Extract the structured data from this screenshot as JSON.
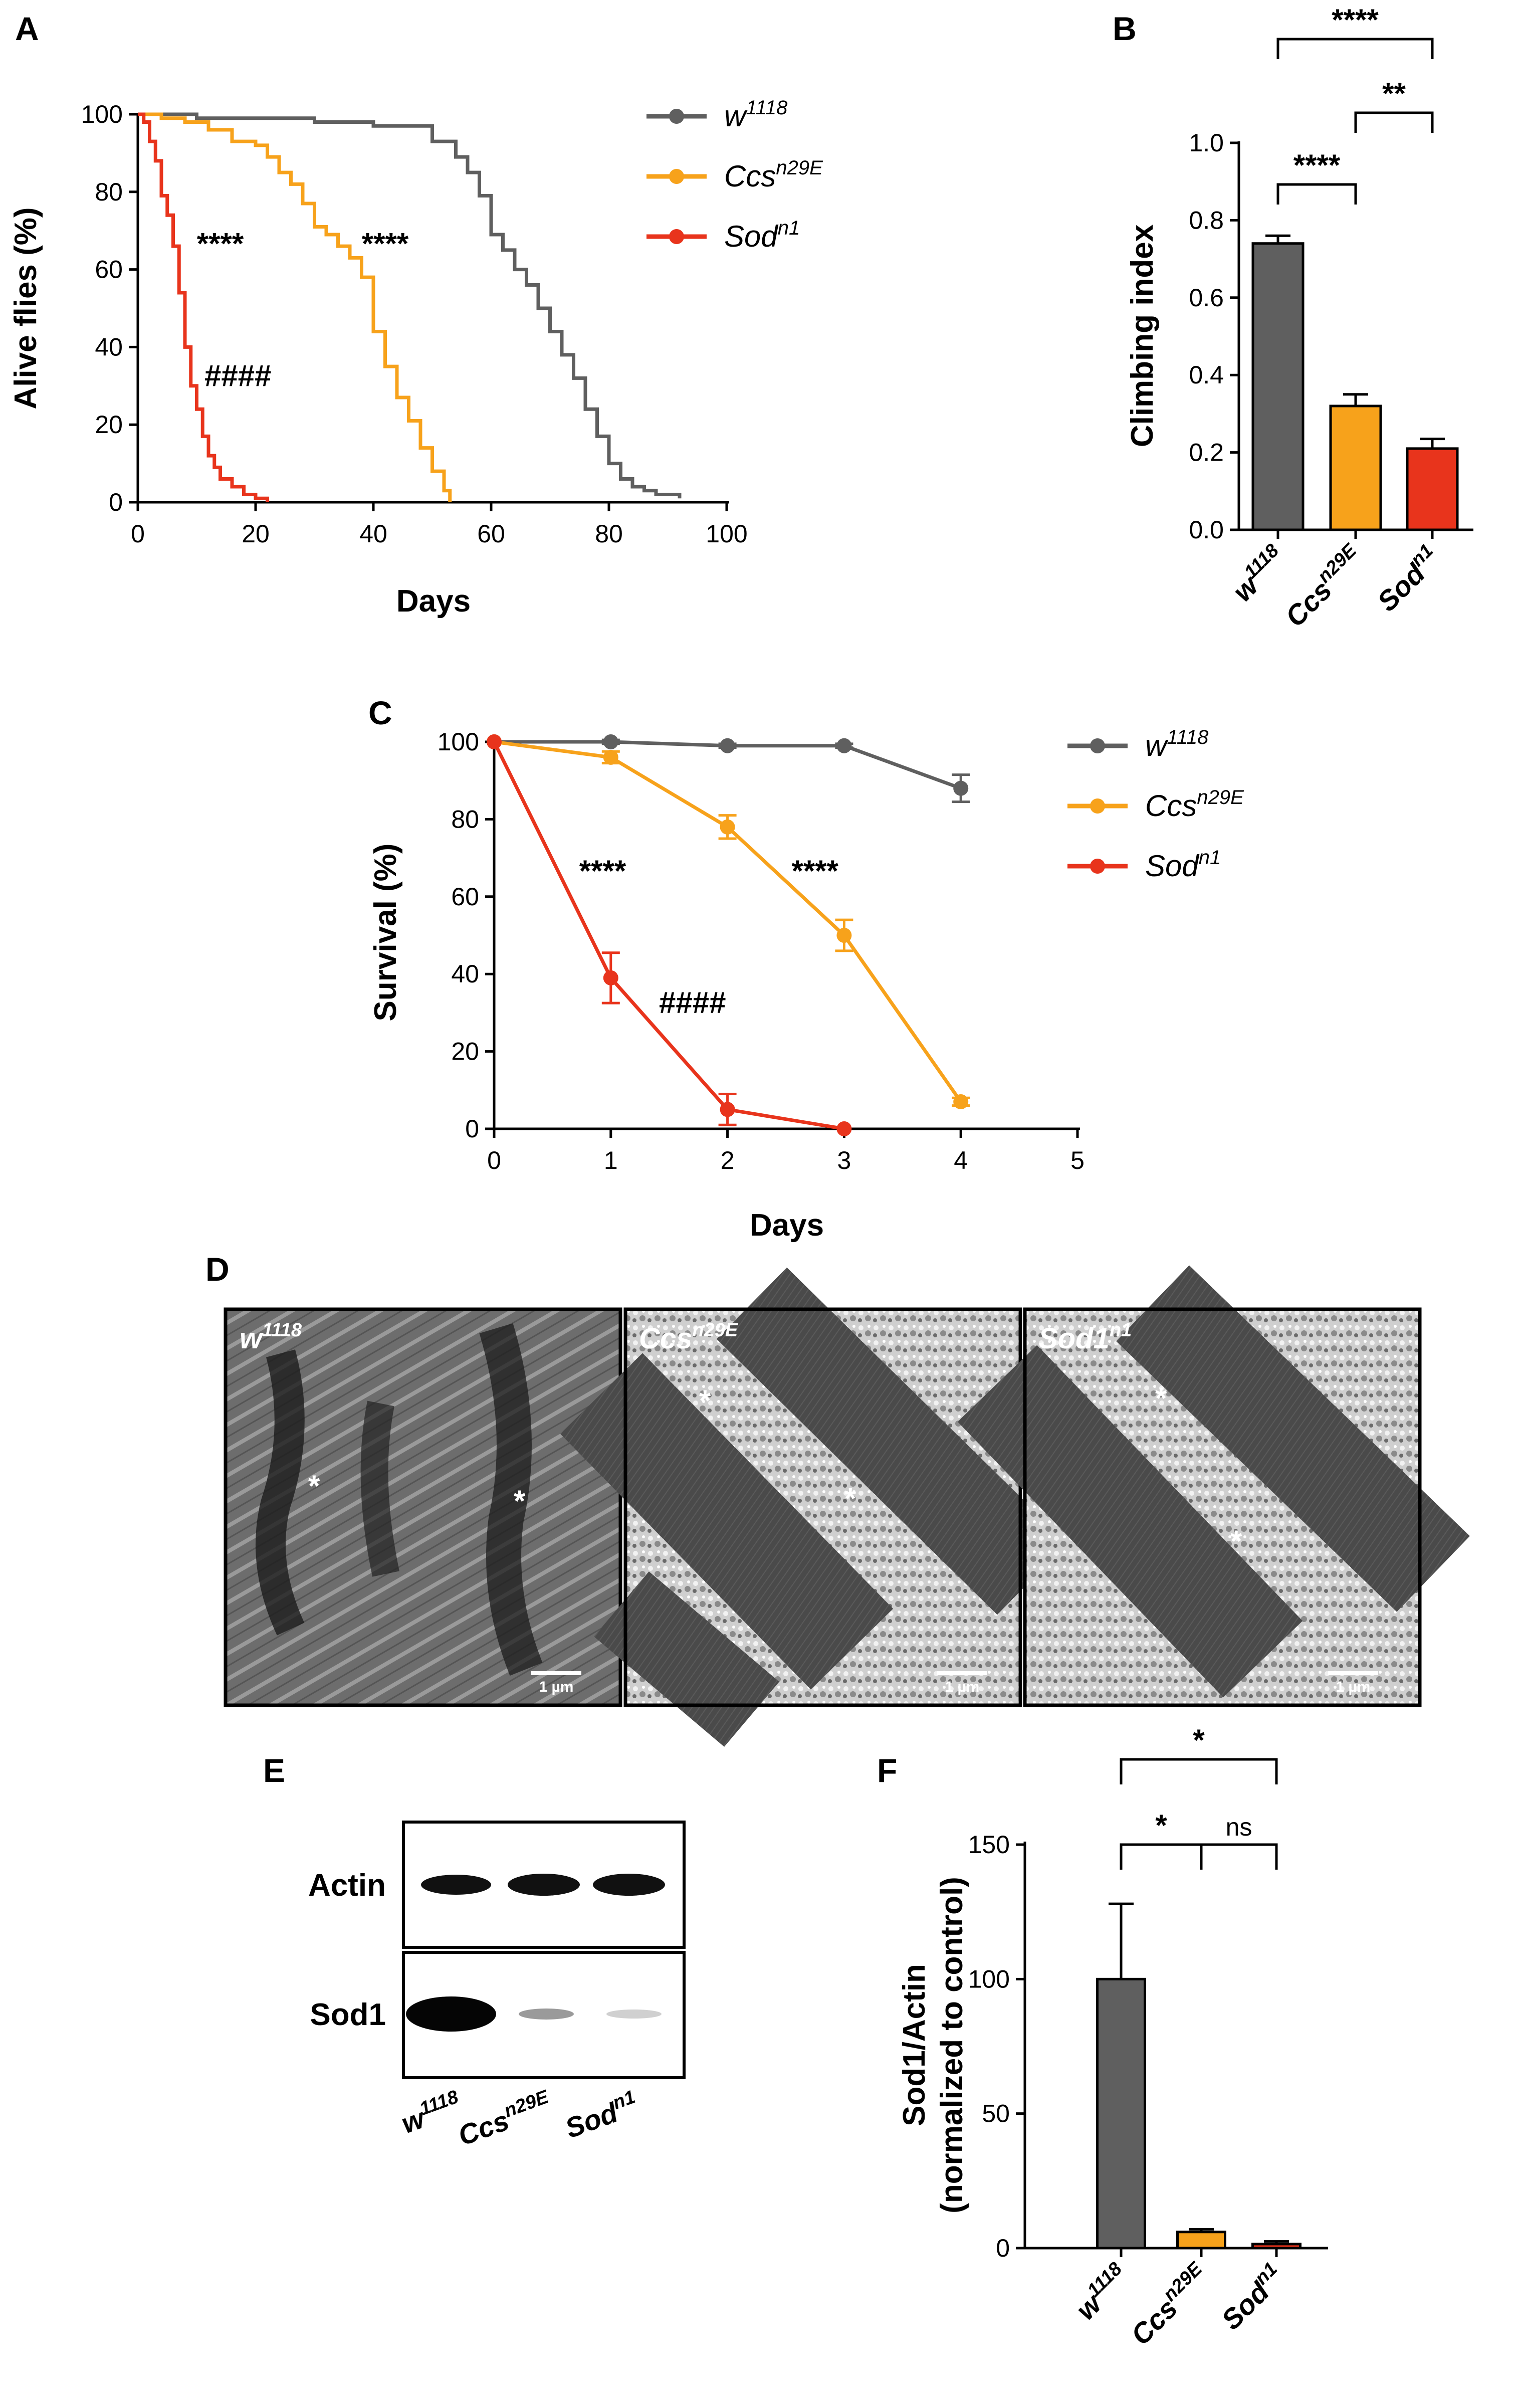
{
  "colors": {
    "w1118": "#5f5f5f",
    "ccs": "#f7a21b",
    "sod": "#e8341c"
  },
  "panels": {
    "A": "A",
    "B": "B",
    "C": "C",
    "D": "D",
    "E": "E",
    "F": "F"
  },
  "genotypes": {
    "w1118": {
      "base": "w",
      "sup": "1118"
    },
    "ccs": {
      "base": "Ccs",
      "sup": "n29E"
    },
    "sod": {
      "base": "Sod",
      "sup": "n1"
    },
    "sod1": {
      "base": "Sod1",
      "sup": "n1"
    }
  },
  "chart_data": [
    {
      "id": "A",
      "type": "line",
      "style": "step",
      "xlabel": "Days",
      "ylabel": "Alive flies (%)",
      "xlim": [
        0,
        100
      ],
      "ylim": [
        0,
        100
      ],
      "xticks": [
        "0",
        "20",
        "40",
        "60",
        "80",
        "100"
      ],
      "yticks": [
        "0",
        "20",
        "40",
        "60",
        "80",
        "100"
      ],
      "legend": "right",
      "series": [
        {
          "key": "w1118",
          "x": [
            0,
            10,
            20,
            30,
            40,
            45,
            50,
            54,
            56,
            58,
            60,
            62,
            64,
            66,
            68,
            70,
            72,
            74,
            76,
            78,
            80,
            82,
            84,
            86,
            88,
            92
          ],
          "y": [
            100,
            99,
            99,
            98,
            97,
            97,
            93,
            89,
            85,
            79,
            69,
            65,
            60,
            56,
            50,
            44,
            38,
            32,
            24,
            17,
            10,
            6,
            4,
            3,
            2,
            1
          ]
        },
        {
          "key": "ccs",
          "x": [
            0,
            4,
            8,
            12,
            16,
            20,
            22,
            24,
            26,
            28,
            30,
            32,
            34,
            36,
            38,
            40,
            42,
            44,
            46,
            48,
            50,
            52,
            53
          ],
          "y": [
            100,
            99,
            98,
            96,
            93,
            92,
            89,
            85,
            82,
            77,
            71,
            69,
            66,
            63,
            58,
            44,
            35,
            27,
            21,
            14,
            8,
            3,
            0
          ]
        },
        {
          "key": "sod",
          "x": [
            0,
            1,
            2,
            3,
            4,
            5,
            6,
            7,
            8,
            9,
            10,
            11,
            12,
            13,
            14,
            16,
            18,
            20,
            22
          ],
          "y": [
            100,
            98,
            93,
            88,
            79,
            74,
            66,
            54,
            40,
            30,
            24,
            17,
            12,
            9,
            6,
            4,
            2,
            1,
            0
          ]
        }
      ],
      "annotations": [
        {
          "text": "****",
          "x": 14,
          "y": 64
        },
        {
          "text": "****",
          "x": 42,
          "y": 64
        },
        {
          "text": "####",
          "x": 17,
          "y": 30
        }
      ]
    },
    {
      "id": "B",
      "type": "bar",
      "ylabel": "Climbing index",
      "ylim": [
        0,
        1.0
      ],
      "yticks": [
        "0.0",
        "0.2",
        "0.4",
        "0.6",
        "0.8",
        "1.0"
      ],
      "categories": [
        "w1118",
        "ccs",
        "sod"
      ],
      "values": [
        0.74,
        0.32,
        0.21
      ],
      "errors": [
        0.02,
        0.03,
        0.025
      ],
      "significance": [
        {
          "from": 0,
          "to": 1,
          "label": "****"
        },
        {
          "from": 1,
          "to": 2,
          "label": "**"
        },
        {
          "from": 0,
          "to": 2,
          "label": "****"
        }
      ]
    },
    {
      "id": "C",
      "type": "line",
      "xlabel": "Days",
      "ylabel": "Survival (%)",
      "xlim": [
        0,
        5
      ],
      "ylim": [
        0,
        100
      ],
      "xticks": [
        "0",
        "1",
        "2",
        "3",
        "4",
        "5"
      ],
      "yticks": [
        "0",
        "20",
        "40",
        "60",
        "80",
        "100"
      ],
      "legend": "right",
      "series": [
        {
          "key": "w1118",
          "x": [
            0,
            1,
            2,
            3,
            4
          ],
          "y": [
            100,
            100,
            99,
            99,
            88
          ],
          "err": [
            0,
            0.5,
            0.5,
            0.5,
            3.5
          ]
        },
        {
          "key": "ccs",
          "x": [
            0,
            1,
            2,
            3,
            4
          ],
          "y": [
            100,
            96,
            78,
            50,
            7
          ],
          "err": [
            0,
            1.5,
            3,
            4,
            1
          ]
        },
        {
          "key": "sod",
          "x": [
            0,
            1,
            2,
            3
          ],
          "y": [
            100,
            39,
            5,
            0
          ],
          "err": [
            0,
            6.5,
            4,
            0
          ]
        }
      ],
      "annotations": [
        {
          "text": "****",
          "x": 0.93,
          "y": 64
        },
        {
          "text": "****",
          "x": 2.75,
          "y": 64
        },
        {
          "text": "####",
          "x": 1.7,
          "y": 30
        }
      ]
    },
    {
      "id": "F",
      "type": "bar",
      "ylabel": "Sod1/Actin",
      "ylabel2": "(normalized to control)",
      "ylim": [
        0,
        150
      ],
      "yticks": [
        "0",
        "50",
        "100",
        "150"
      ],
      "categories": [
        "w1118",
        "ccs",
        "sod"
      ],
      "values": [
        100,
        6,
        1.5
      ],
      "errors": [
        28,
        1,
        1
      ],
      "significance": [
        {
          "from": 0,
          "to": 1,
          "label": "*"
        },
        {
          "from": 1,
          "to": 2,
          "label": "ns"
        },
        {
          "from": 0,
          "to": 2,
          "label": "*"
        }
      ]
    }
  ],
  "panel_d": {
    "scale_bar": "1 µm",
    "images": [
      {
        "key": "w1118",
        "marks": [
          "*",
          "*"
        ]
      },
      {
        "key": "ccs",
        "marks": [
          "*",
          "*"
        ]
      },
      {
        "key": "sod1",
        "marks": [
          "*",
          "*"
        ]
      }
    ]
  },
  "panel_e": {
    "rows": [
      "Actin",
      "Sod1"
    ],
    "lanes": [
      "w1118",
      "ccs",
      "sod"
    ]
  }
}
